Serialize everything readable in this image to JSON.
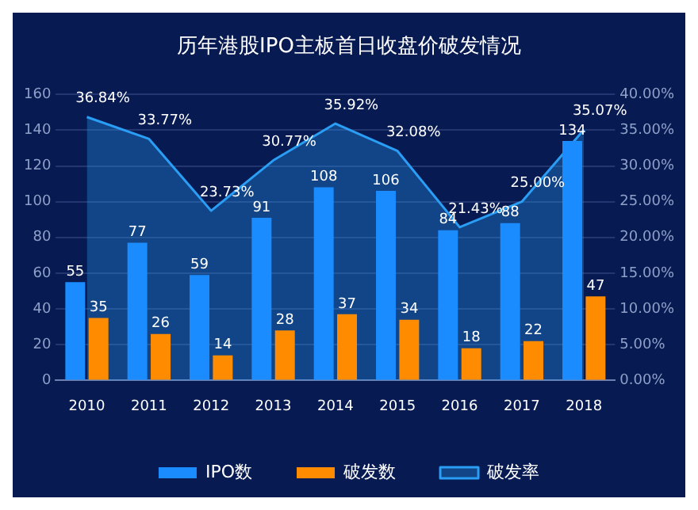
{
  "chart_data": {
    "type": "bar",
    "title": "历年港股IPO主板首日收盘价破发情况",
    "categories": [
      "2010",
      "2011",
      "2012",
      "2013",
      "2014",
      "2015",
      "2016",
      "2017",
      "2018"
    ],
    "series": [
      {
        "name": "IPO数",
        "color": "#1a8cff",
        "values": [
          55,
          77,
          59,
          91,
          108,
          106,
          84,
          88,
          134
        ]
      },
      {
        "name": "破发数",
        "color": "#ff8c00",
        "values": [
          35,
          26,
          14,
          28,
          37,
          34,
          18,
          22,
          47
        ]
      },
      {
        "name": "破发率",
        "type": "area",
        "axis": "y2",
        "color": "#2a9df4",
        "values": [
          36.84,
          33.77,
          23.73,
          30.77,
          35.92,
          32.08,
          21.43,
          25.0,
          35.07
        ],
        "value_labels": [
          "36.84%",
          "33.77%",
          "23.73%",
          "30.77%",
          "35.92%",
          "32.08%",
          "21.43%",
          "25.00%",
          "35.07%"
        ]
      }
    ],
    "ylim": [
      0,
      160
    ],
    "yticks": [
      0,
      20,
      40,
      60,
      80,
      100,
      120,
      140,
      160
    ],
    "y2lim": [
      0,
      40
    ],
    "y2ticks": [
      {
        "value": 0,
        "label": "0.00%"
      },
      {
        "value": 5,
        "label": "5.00%"
      },
      {
        "value": 10,
        "label": "10.00%"
      },
      {
        "value": 15,
        "label": "15.00%"
      },
      {
        "value": 20,
        "label": "20.00%"
      },
      {
        "value": 25,
        "label": "25.00%"
      },
      {
        "value": 30,
        "label": "30.00%"
      },
      {
        "value": 35,
        "label": "35.00%"
      },
      {
        "value": 40,
        "label": "40.00%"
      }
    ],
    "data_labels": true,
    "grid": "y",
    "legend": "bottom",
    "marker": "none"
  }
}
